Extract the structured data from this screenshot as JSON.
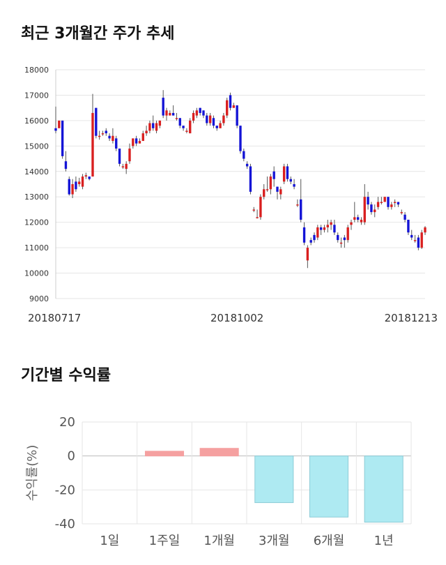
{
  "headings": {
    "price_trend": "최근 3개월간 주가 추세",
    "returns": "기간별 수익률"
  },
  "colors": {
    "up_candle": "#d91f1f",
    "down_candle": "#1414d6",
    "wick": "#555555",
    "gridline": "#e6e6e6",
    "positive_bar": "#f5a0a0",
    "negative_bar": "#aeeaf2",
    "negative_bar_border": "#8ccbd6"
  },
  "chart_data": [
    {
      "type": "candlestick",
      "title": "",
      "ylim": [
        9000,
        18000
      ],
      "yticks": [
        9000,
        10000,
        11000,
        12000,
        13000,
        14000,
        15000,
        16000,
        17000,
        18000
      ],
      "xtick_labels": [
        "20180717",
        "20181002",
        "20181213"
      ],
      "xtick_indices": [
        0,
        54,
        105
      ],
      "grid": true,
      "candles": [
        [
          15700,
          15600,
          16550,
          15500
        ],
        [
          15700,
          16000,
          16000,
          15900
        ],
        [
          16000,
          14600,
          16000,
          14500
        ],
        [
          14400,
          14100,
          14800,
          14000
        ],
        [
          13700,
          13100,
          13800,
          13050
        ],
        [
          13100,
          13500,
          13700,
          12950
        ],
        [
          13600,
          13300,
          13800,
          13200
        ],
        [
          13500,
          13600,
          13750,
          13400
        ],
        [
          13400,
          13800,
          13900,
          13300
        ],
        [
          13800,
          13850,
          13950,
          13700
        ],
        [
          13800,
          13700,
          13800,
          13650
        ],
        [
          13800,
          16300,
          17050,
          13800
        ],
        [
          16500,
          15400,
          16500,
          15300
        ],
        [
          15400,
          15400,
          15600,
          15250
        ],
        [
          15500,
          15500,
          15600,
          15400
        ],
        [
          15600,
          15500,
          15700,
          15400
        ],
        [
          15400,
          15300,
          15500,
          15200
        ],
        [
          15200,
          15400,
          15700,
          15100
        ],
        [
          15300,
          14900,
          15400,
          14800
        ],
        [
          14900,
          14300,
          14900,
          14200
        ],
        [
          14200,
          14200,
          14300,
          14100
        ],
        [
          14100,
          14300,
          14400,
          13900
        ],
        [
          14400,
          14900,
          15100,
          14300
        ],
        [
          15000,
          15300,
          15300,
          14900
        ],
        [
          15300,
          15100,
          15400,
          15000
        ],
        [
          15100,
          15200,
          15300,
          15100
        ],
        [
          15200,
          15500,
          15600,
          15200
        ],
        [
          15500,
          15600,
          15800,
          15400
        ],
        [
          15600,
          15900,
          16000,
          15500
        ],
        [
          15900,
          15700,
          16200,
          15600
        ],
        [
          15600,
          15900,
          16000,
          15500
        ],
        [
          15800,
          16000,
          16000,
          15700
        ],
        [
          16900,
          16200,
          17200,
          16100
        ],
        [
          16200,
          16400,
          16500,
          16000
        ],
        [
          16200,
          16300,
          16400,
          16200
        ],
        [
          16300,
          16200,
          16600,
          16200
        ],
        [
          16100,
          16100,
          16300,
          16000
        ],
        [
          16100,
          15800,
          16100,
          15700
        ],
        [
          15800,
          15700,
          15800,
          15600
        ],
        [
          15600,
          15600,
          15700,
          15500
        ],
        [
          15500,
          16000,
          16100,
          15500
        ],
        [
          16000,
          16300,
          16400,
          15900
        ],
        [
          16200,
          16400,
          16500,
          16100
        ],
        [
          16500,
          16300,
          16500,
          16200
        ],
        [
          16400,
          16200,
          16400,
          16100
        ],
        [
          16200,
          15900,
          16300,
          15800
        ],
        [
          15900,
          16200,
          16300,
          15800
        ],
        [
          16100,
          15800,
          16200,
          15700
        ],
        [
          15800,
          15700,
          15800,
          15600
        ],
        [
          15700,
          15900,
          16000,
          15700
        ],
        [
          15900,
          16200,
          16300,
          15800
        ],
        [
          16200,
          16800,
          16900,
          16100
        ],
        [
          17000,
          16500,
          17100,
          16400
        ],
        [
          16500,
          16600,
          16700,
          16500
        ],
        [
          16600,
          15800,
          16600,
          15700
        ],
        [
          15800,
          14800,
          15800,
          14700
        ],
        [
          14800,
          14500,
          14900,
          14400
        ],
        [
          14300,
          14200,
          14400,
          14100
        ],
        [
          14200,
          13200,
          14300,
          13100
        ],
        [
          12500,
          12500,
          12600,
          12400
        ],
        [
          12200,
          12200,
          12500,
          12150
        ],
        [
          12200,
          13000,
          13100,
          12100
        ],
        [
          13000,
          13300,
          13500,
          12900
        ],
        [
          13300,
          13300,
          13800,
          13200
        ],
        [
          13300,
          13800,
          13900,
          13100
        ],
        [
          14000,
          13700,
          14200,
          13400
        ],
        [
          13400,
          13200,
          13400,
          12900
        ],
        [
          13100,
          13300,
          13400,
          12900
        ],
        [
          13600,
          14200,
          14300,
          13500
        ],
        [
          14200,
          13700,
          14300,
          13600
        ],
        [
          13700,
          13600,
          13800,
          13500
        ],
        [
          13500,
          13400,
          13700,
          13300
        ],
        [
          12700,
          12700,
          12900,
          12600
        ],
        [
          12900,
          12100,
          13700,
          12000
        ],
        [
          11800,
          11200,
          12000,
          11100
        ],
        [
          10500,
          11000,
          11100,
          10200
        ],
        [
          11300,
          11200,
          11400,
          11100
        ],
        [
          11500,
          11300,
          11600,
          11200
        ],
        [
          11400,
          11800,
          11900,
          11300
        ],
        [
          11800,
          11700,
          11900,
          11500
        ],
        [
          11700,
          11800,
          11900,
          11600
        ],
        [
          11800,
          11900,
          12100,
          11600
        ],
        [
          11900,
          12000,
          12100,
          11700
        ],
        [
          11900,
          11600,
          12100,
          11500
        ],
        [
          11500,
          11300,
          11600,
          11200
        ],
        [
          11200,
          11200,
          11400,
          11000
        ],
        [
          11400,
          11300,
          11500,
          11000
        ],
        [
          11300,
          11800,
          11900,
          11200
        ],
        [
          11900,
          12000,
          12100,
          11700
        ],
        [
          12100,
          12200,
          12800,
          12000
        ],
        [
          12200,
          12100,
          12300,
          12000
        ],
        [
          12000,
          12100,
          12200,
          11900
        ],
        [
          12000,
          13000,
          13500,
          11900
        ],
        [
          13000,
          12700,
          13200,
          12500
        ],
        [
          12700,
          12400,
          12800,
          12300
        ],
        [
          12400,
          12500,
          12700,
          12200
        ],
        [
          12600,
          12800,
          13000,
          12500
        ],
        [
          12800,
          12800,
          13000,
          12700
        ],
        [
          12800,
          13000,
          13000,
          12800
        ],
        [
          13000,
          12600,
          13000,
          12500
        ],
        [
          12600,
          12700,
          12800,
          12500
        ],
        [
          12800,
          12800,
          12900,
          12600
        ],
        [
          12800,
          12700,
          12800,
          12600
        ],
        [
          12400,
          12400,
          12500,
          12300
        ],
        [
          12300,
          12100,
          12400,
          12000
        ],
        [
          12100,
          11600,
          12100,
          11500
        ],
        [
          11500,
          11400,
          11700,
          11300
        ],
        [
          11300,
          11300,
          11500,
          11200
        ],
        [
          11400,
          11000,
          11500,
          10900
        ],
        [
          11000,
          11600,
          11700,
          10950
        ],
        [
          11600,
          11800,
          11850,
          11500
        ]
      ]
    },
    {
      "type": "bar",
      "title": "",
      "ylabel": "수익률(%)",
      "ylim": [
        -40,
        20
      ],
      "yticks": [
        20,
        0,
        -20,
        -40
      ],
      "grid": true,
      "categories": [
        "1일",
        "1주일",
        "1개월",
        "3개월",
        "6개월",
        "1년"
      ],
      "values": [
        0.0,
        2.8,
        4.5,
        -27.5,
        -36.0,
        -39.0
      ]
    }
  ]
}
